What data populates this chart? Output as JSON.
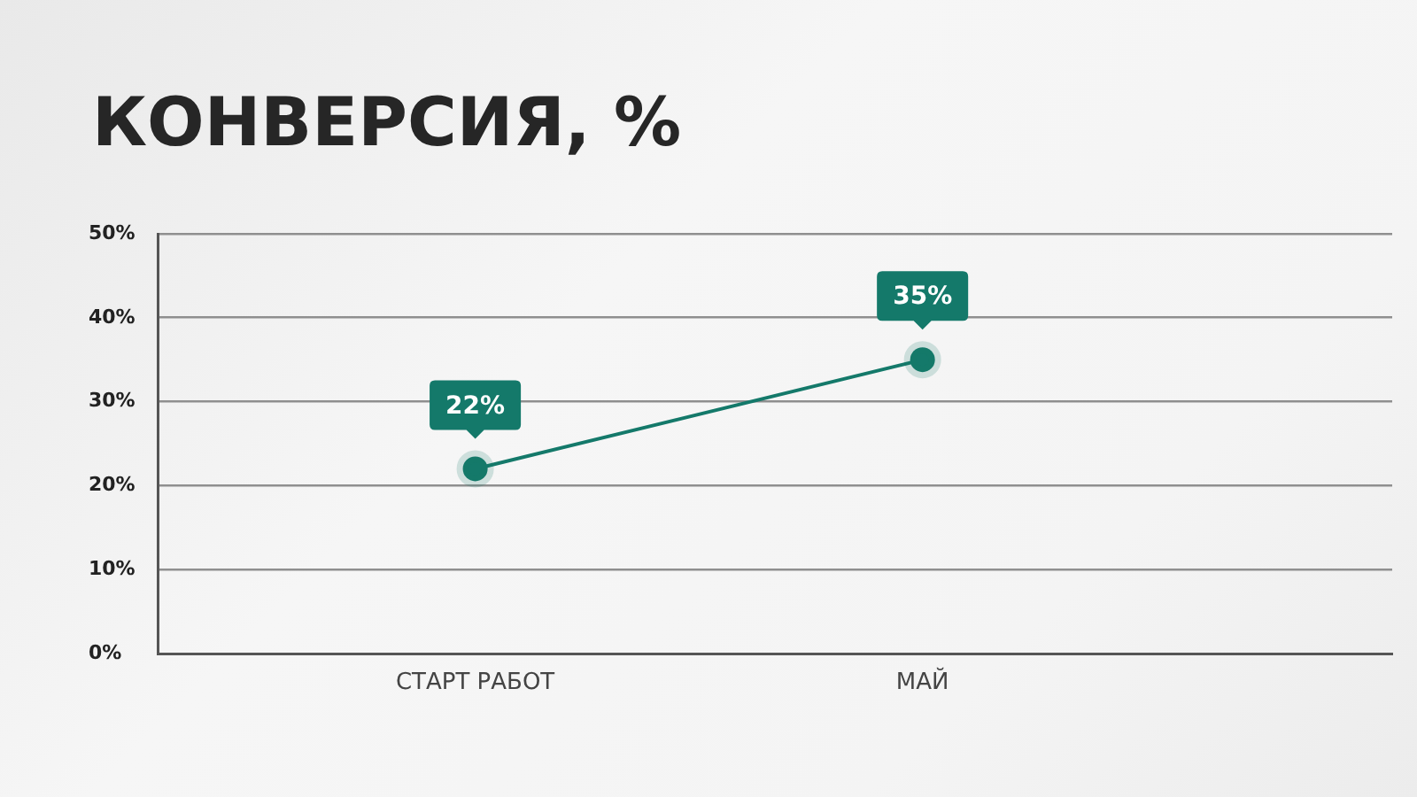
{
  "chart_data": {
    "type": "line",
    "title": "КОНВЕРСИЯ, %",
    "categories": [
      "СТАРТ РАБОТ",
      "МАЙ"
    ],
    "series": [
      {
        "color": "#14796a",
        "values": [
          22,
          35
        ],
        "value_labels": [
          "22%",
          "35%"
        ]
      }
    ],
    "ylim": [
      0,
      50
    ],
    "yticks": [
      {
        "value": 0,
        "label": "0%"
      },
      {
        "value": 10,
        "label": "10%"
      },
      {
        "value": 20,
        "label": "20%"
      },
      {
        "value": 30,
        "label": "30%"
      },
      {
        "value": 40,
        "label": "40%"
      },
      {
        "value": 50,
        "label": "50%"
      }
    ],
    "grid": "y",
    "marker": "circle",
    "line_style": "solid"
  }
}
